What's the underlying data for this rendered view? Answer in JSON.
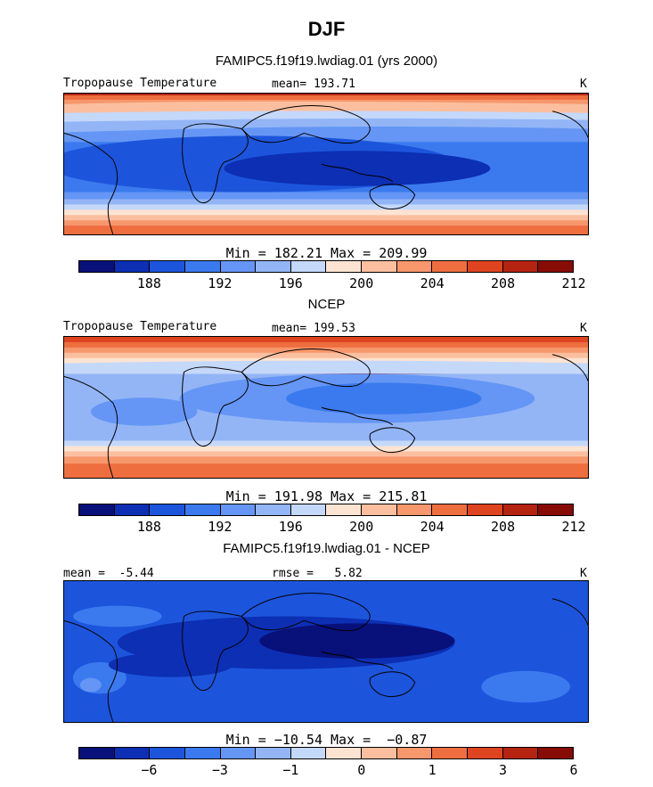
{
  "title": "DJF",
  "panels": [
    {
      "subtitle": "FAMIPC5.f19f19.lwdiag.01 (yrs 2000)",
      "left_label": "Tropopause Temperature",
      "mean_label": "mean= 193.71",
      "unit": "K",
      "minmax": "Min = 182.21 Max = 209.99",
      "ticks": [
        "188",
        "192",
        "196",
        "200",
        "204",
        "208",
        "212"
      ],
      "colors": [
        "#08107a",
        "#0c2fb4",
        "#1c55dc",
        "#3b7aee",
        "#6596f5",
        "#93b5f6",
        "#c4d8fa",
        "#fde3d2",
        "#fbbf9f",
        "#f7976c",
        "#ef6e40",
        "#de441f",
        "#b52311",
        "#870c05"
      ]
    },
    {
      "subtitle": "NCEP",
      "left_label": "Tropopause Temperature",
      "mean_label": "mean= 199.53",
      "unit": "K",
      "minmax": "Min = 191.98 Max = 215.81",
      "ticks": [
        "188",
        "192",
        "196",
        "200",
        "204",
        "208",
        "212"
      ],
      "colors": [
        "#08107a",
        "#0c2fb4",
        "#1c55dc",
        "#3b7aee",
        "#6596f5",
        "#93b5f6",
        "#c4d8fa",
        "#fde3d2",
        "#fbbf9f",
        "#f7976c",
        "#ef6e40",
        "#de441f",
        "#b52311",
        "#870c05"
      ]
    },
    {
      "subtitle": "FAMIPC5.f19f19.lwdiag.01 - NCEP",
      "left_label": "mean =  -5.44",
      "mean_label": "rmse =   5.82",
      "unit": "K",
      "minmax": "Min = −10.54 Max =  −0.87",
      "ticks": [
        "−6",
        "−3",
        "−1",
        "0",
        "1",
        "3",
        "6"
      ],
      "colors": [
        "#08107a",
        "#0c2fb4",
        "#1c55dc",
        "#3b7aee",
        "#6596f5",
        "#93b5f6",
        "#c4d8fa",
        "#fde3d2",
        "#fbbf9f",
        "#f7976c",
        "#ef6e40",
        "#de441f",
        "#b52311",
        "#870c05"
      ]
    }
  ]
}
